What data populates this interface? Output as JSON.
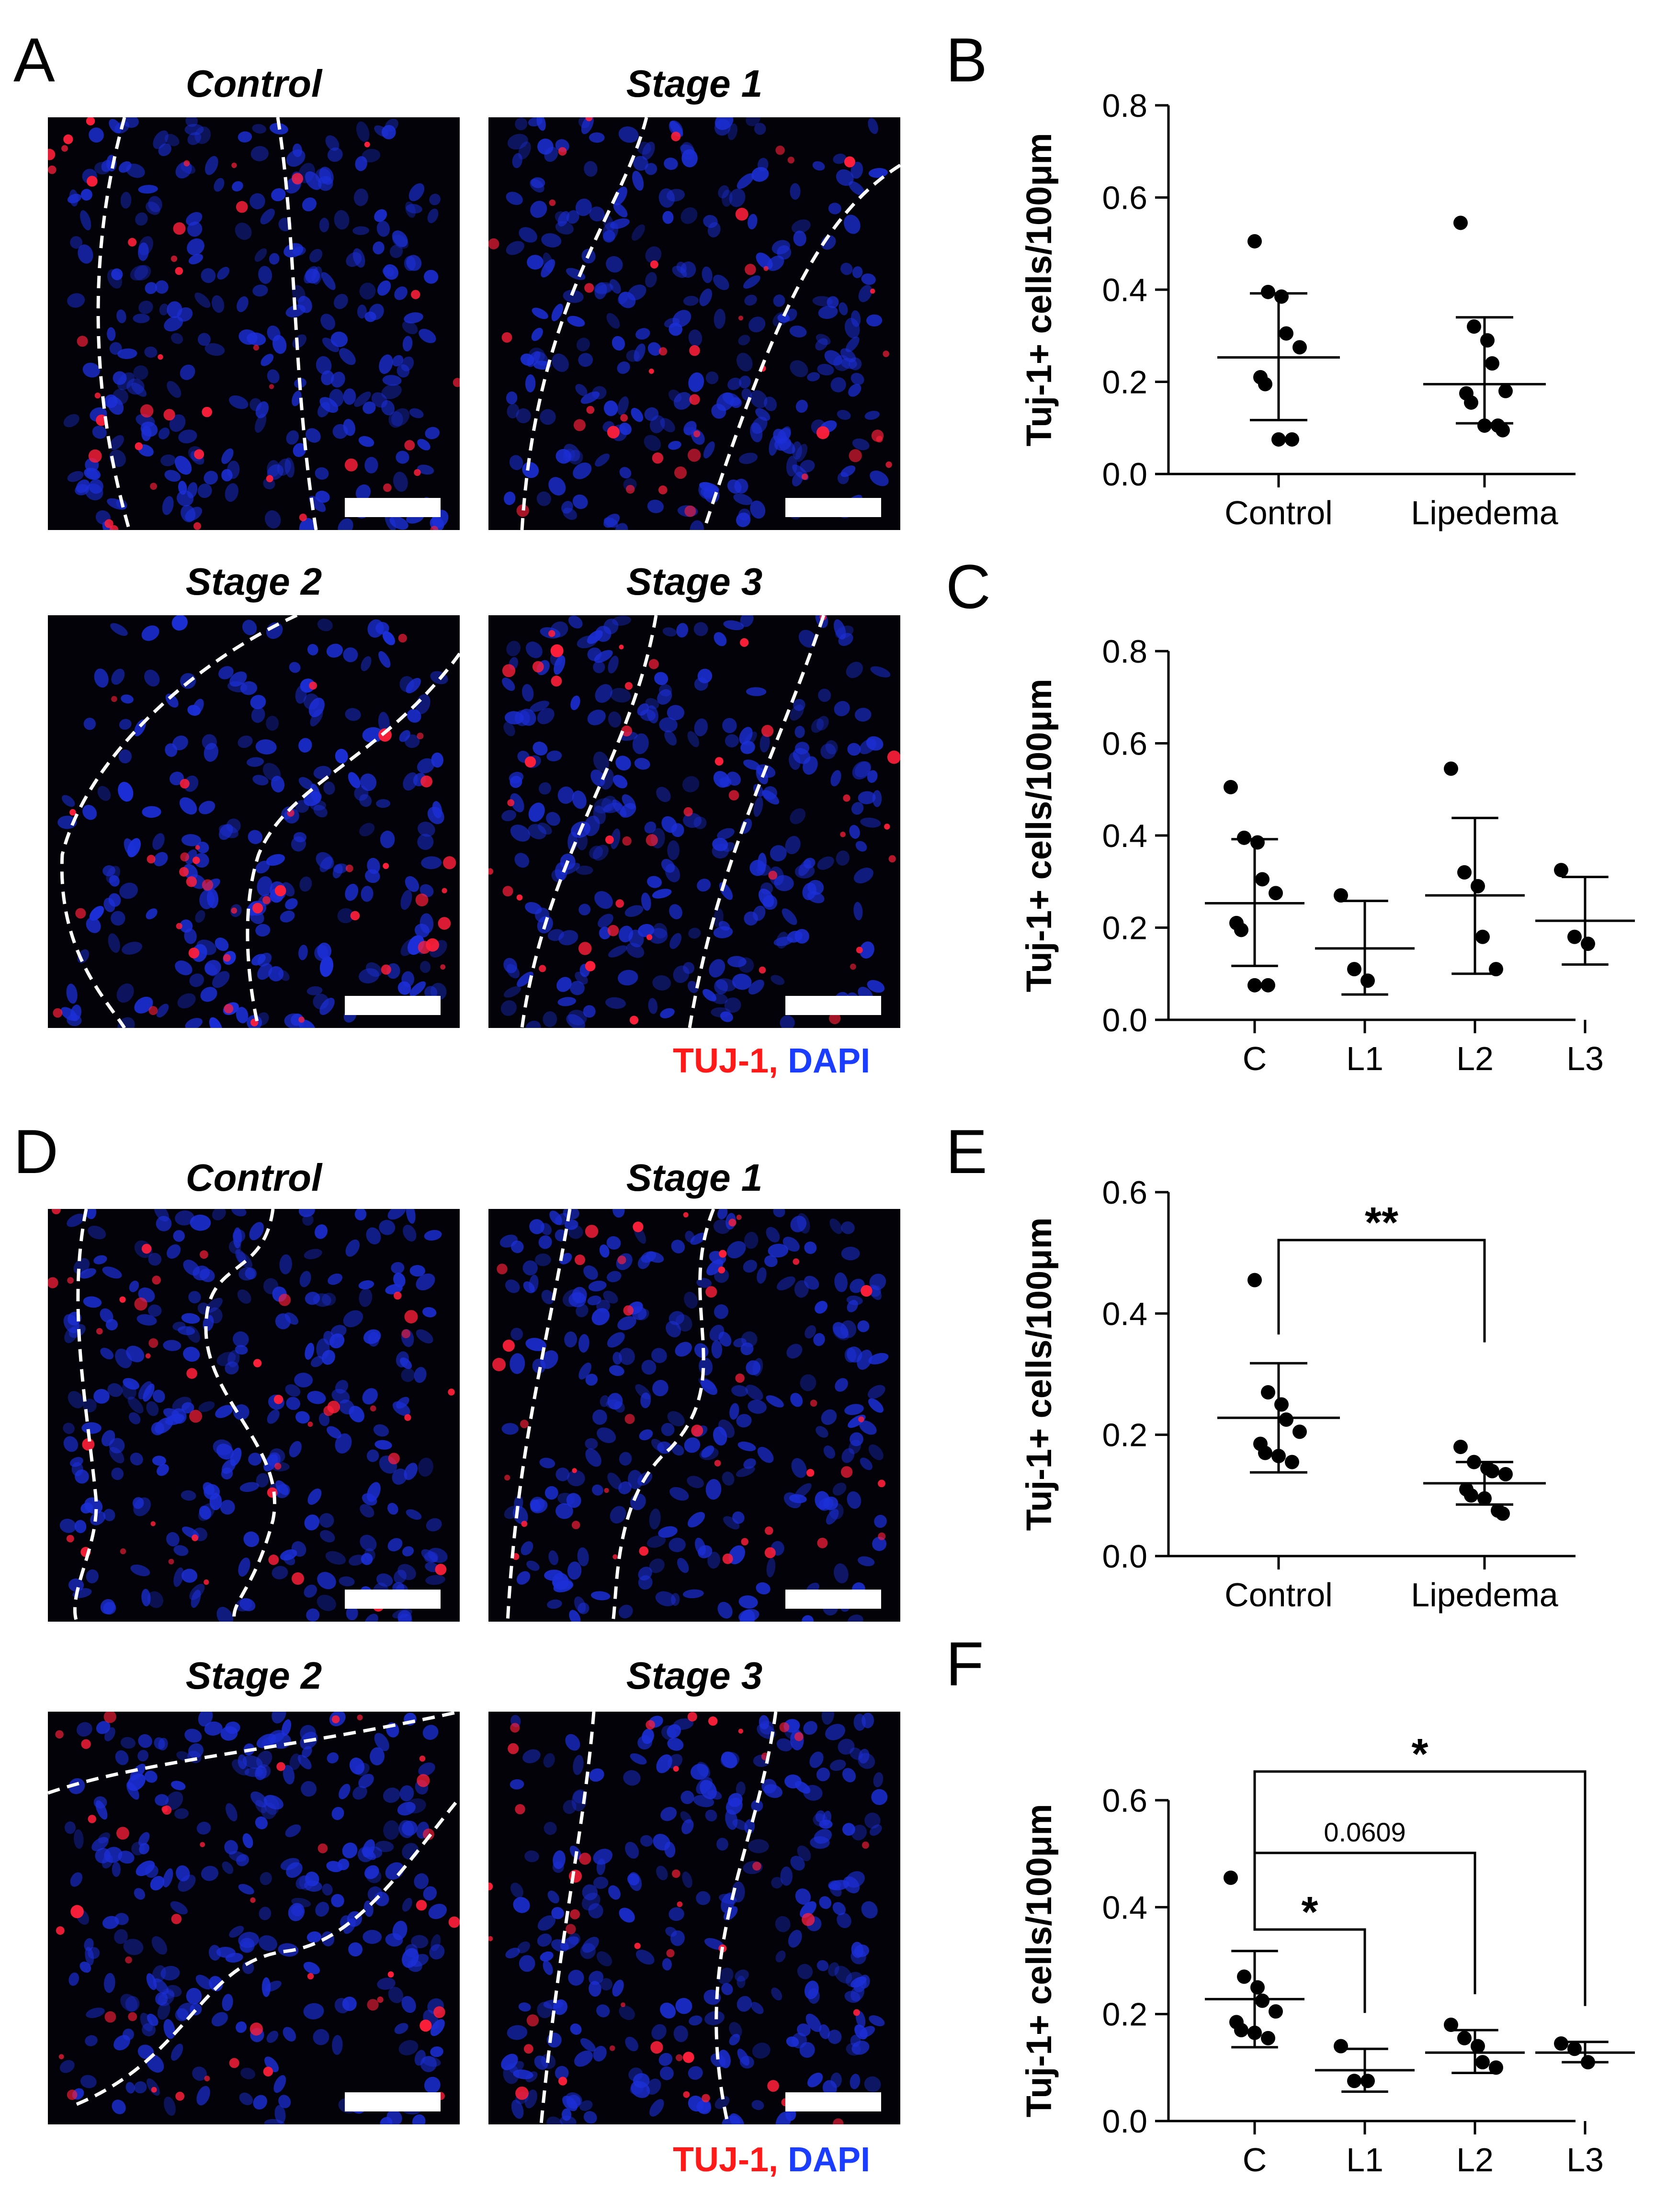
{
  "panels": {
    "A": {
      "letter": "A",
      "titles": [
        "Control",
        "Stage 1",
        "Stage 2",
        "Stage 3"
      ],
      "legend": {
        "red": "TUJ-1,",
        "blue": "DAPI"
      }
    },
    "D": {
      "letter": "D",
      "titles": [
        "Control",
        "Stage 1",
        "Stage 2",
        "Stage 3"
      ],
      "legend": {
        "red": "TUJ-1,",
        "blue": "DAPI"
      }
    }
  },
  "colors": {
    "dapi": "#1c2fd8",
    "tuj1": "#ff1f3a",
    "dashed": "#ffffff",
    "background": "#000000"
  },
  "chart_data": [
    {
      "panel": "B",
      "type": "scatter",
      "ylabel": "Tuj-1+ cells/100μm",
      "ylim": [
        0,
        0.8
      ],
      "yticks": [
        0.0,
        0.2,
        0.4,
        0.6,
        0.8
      ],
      "categories": [
        "Control",
        "Lipedema"
      ],
      "series": [
        {
          "category": "Control",
          "points": [
            0.505,
            0.395,
            0.385,
            0.305,
            0.275,
            0.21,
            0.195,
            0.075,
            0.075
          ],
          "mean": 0.253,
          "sd_low": 0.117,
          "sd_high": 0.392
        },
        {
          "category": "Lipedema",
          "points": [
            0.545,
            0.32,
            0.29,
            0.24,
            0.18,
            0.175,
            0.155,
            0.105,
            0.105,
            0.095
          ],
          "mean": 0.195,
          "sd_low": 0.11,
          "sd_high": 0.34
        }
      ],
      "significance": []
    },
    {
      "panel": "C",
      "type": "scatter",
      "ylabel": "Tuj-1+ cells/100μm",
      "ylim": [
        0,
        0.8
      ],
      "yticks": [
        0.0,
        0.2,
        0.4,
        0.6,
        0.8
      ],
      "categories": [
        "C",
        "L1",
        "L2",
        "L3"
      ],
      "series": [
        {
          "category": "C",
          "points": [
            0.505,
            0.395,
            0.385,
            0.305,
            0.275,
            0.21,
            0.195,
            0.075,
            0.075
          ],
          "mean": 0.253,
          "sd_low": 0.117,
          "sd_high": 0.392
        },
        {
          "category": "L1",
          "points": [
            0.27,
            0.11,
            0.085
          ],
          "mean": 0.155,
          "sd_low": 0.055,
          "sd_high": 0.258
        },
        {
          "category": "L2",
          "points": [
            0.545,
            0.32,
            0.29,
            0.18,
            0.11
          ],
          "mean": 0.27,
          "sd_low": 0.1,
          "sd_high": 0.438
        },
        {
          "category": "L3",
          "points": [
            0.325,
            0.18,
            0.165
          ],
          "mean": 0.215,
          "sd_low": 0.12,
          "sd_high": 0.31
        }
      ],
      "significance": []
    },
    {
      "panel": "E",
      "type": "scatter",
      "ylabel": "Tuj-1+ cells/100μm",
      "ylim": [
        0,
        0.6
      ],
      "yticks": [
        0.0,
        0.2,
        0.4,
        0.6
      ],
      "categories": [
        "Control",
        "Lipedema"
      ],
      "series": [
        {
          "category": "Control",
          "points": [
            0.455,
            0.27,
            0.25,
            0.225,
            0.205,
            0.185,
            0.17,
            0.165,
            0.155
          ],
          "mean": 0.228,
          "sd_low": 0.138,
          "sd_high": 0.318
        },
        {
          "category": "Lipedema",
          "points": [
            0.18,
            0.155,
            0.145,
            0.14,
            0.135,
            0.11,
            0.1,
            0.095,
            0.075,
            0.07
          ],
          "mean": 0.12,
          "sd_low": 0.085,
          "sd_high": 0.155
        }
      ],
      "significance": [
        {
          "from": 0,
          "to": 1,
          "label": "**",
          "y": 0.52
        }
      ]
    },
    {
      "panel": "F",
      "type": "scatter",
      "ylabel": "Tuj-1+ cells/100μm",
      "ylim": [
        0,
        0.6
      ],
      "yticks": [
        0.0,
        0.2,
        0.4,
        0.6
      ],
      "categories": [
        "C",
        "L1",
        "L2",
        "L3"
      ],
      "series": [
        {
          "category": "C",
          "points": [
            0.455,
            0.27,
            0.25,
            0.225,
            0.205,
            0.185,
            0.17,
            0.165,
            0.155
          ],
          "mean": 0.228,
          "sd_low": 0.138,
          "sd_high": 0.318
        },
        {
          "category": "L1",
          "points": [
            0.14,
            0.075,
            0.075
          ],
          "mean": 0.095,
          "sd_low": 0.055,
          "sd_high": 0.135
        },
        {
          "category": "L2",
          "points": [
            0.18,
            0.155,
            0.14,
            0.11,
            0.1
          ],
          "mean": 0.128,
          "sd_low": 0.09,
          "sd_high": 0.17
        },
        {
          "category": "L3",
          "points": [
            0.145,
            0.135,
            0.11
          ],
          "mean": 0.128,
          "sd_low": 0.11,
          "sd_high": 0.148
        }
      ],
      "significance": [
        {
          "from": 0,
          "to": 1,
          "label": "*",
          "y": 0.52
        },
        {
          "from": 0,
          "to": 2,
          "label": "0.0609",
          "y": 0.68
        },
        {
          "from": 0,
          "to": 3,
          "label": "*",
          "y": 0.83
        }
      ]
    }
  ]
}
